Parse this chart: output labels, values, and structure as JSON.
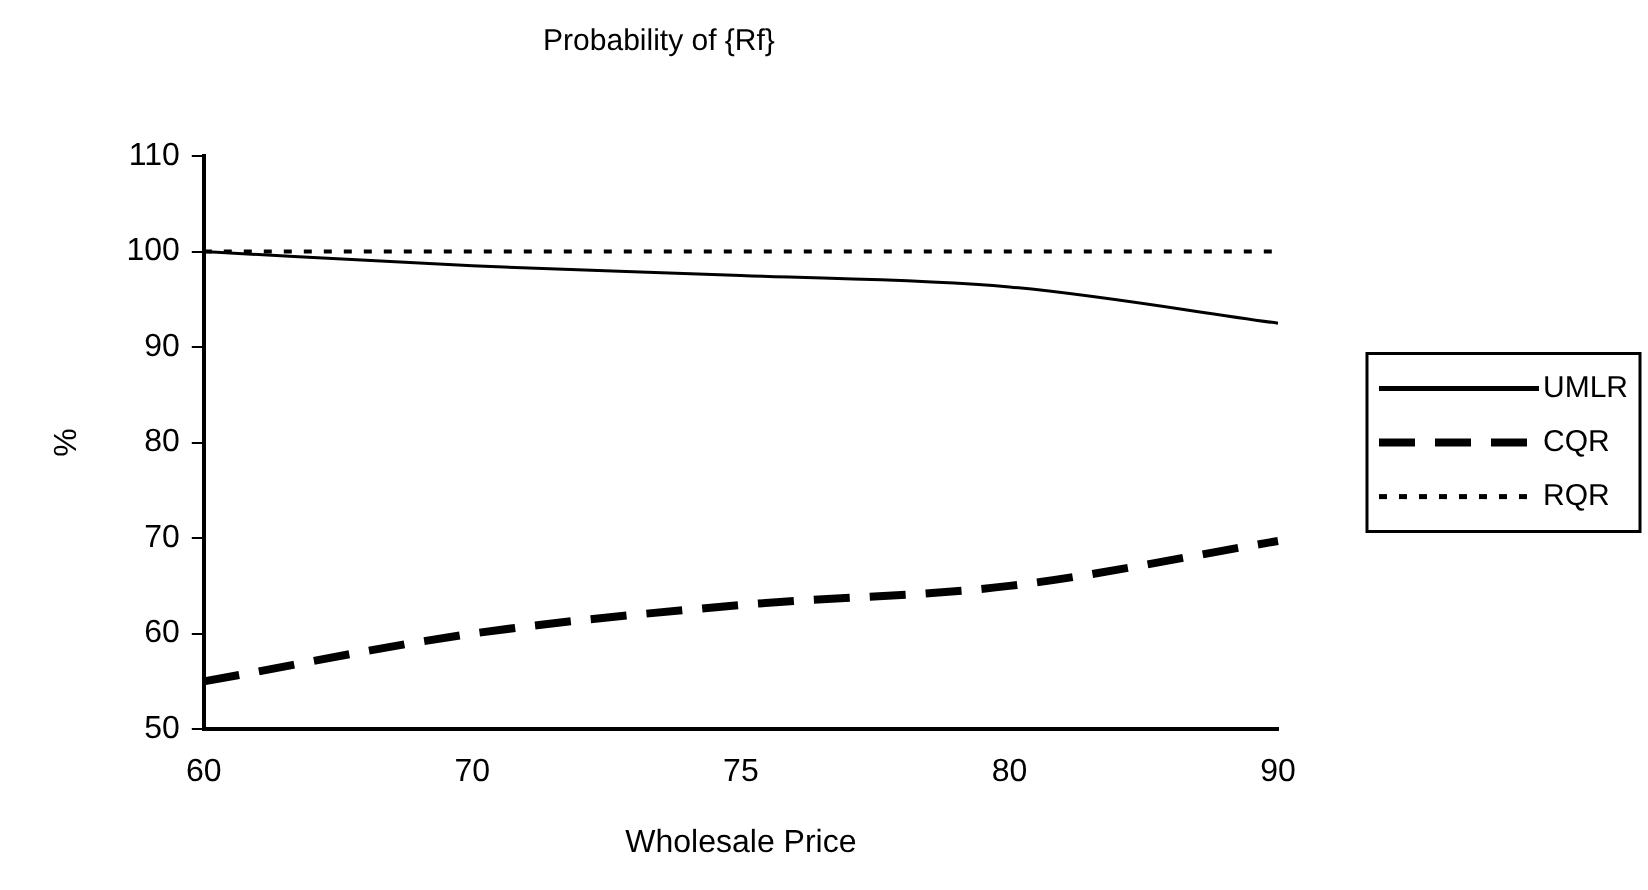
{
  "chart_data": {
    "type": "line",
    "title": "Probability of {Rf}",
    "xlabel": "Wholesale Price",
    "ylabel": "%",
    "categories": [
      "60",
      "70",
      "75",
      "80",
      "90"
    ],
    "series": [
      {
        "name": "UMLR",
        "color": "#000000",
        "line_style": "solid",
        "values": [
          100,
          98.5,
          97.5,
          96.3,
          92.5
        ]
      },
      {
        "name": "CQR",
        "color": "#000000",
        "line_style": "dashed",
        "values": [
          55,
          60,
          63,
          65,
          69.7
        ]
      },
      {
        "name": "RQR",
        "color": "#000000",
        "line_style": "dotted",
        "values": [
          100,
          100,
          100,
          100,
          100
        ]
      }
    ],
    "ylim": [
      50,
      110
    ],
    "yticks": [
      50,
      60,
      70,
      80,
      90,
      100,
      110
    ],
    "grid": false,
    "legend": "right",
    "marker": "none"
  }
}
